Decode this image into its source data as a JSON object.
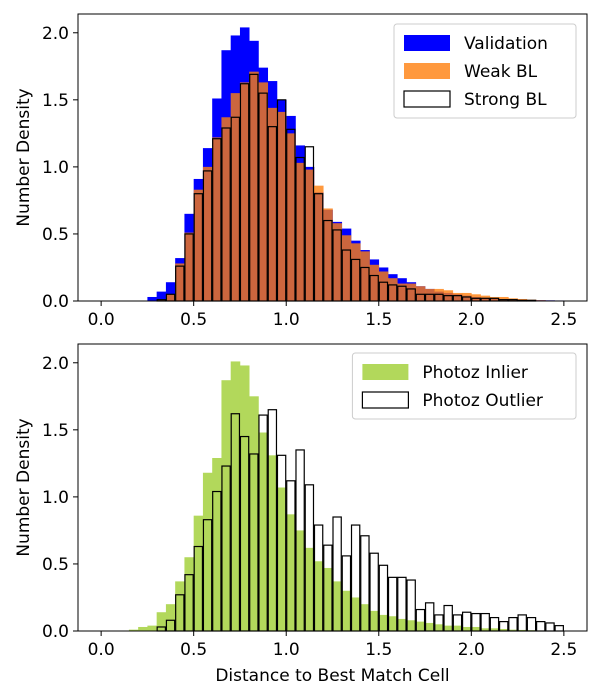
{
  "figure": {
    "xlabel": "Distance to Best Match Cell"
  },
  "chart_data": [
    {
      "type": "histogram",
      "panel": "top",
      "ylabel": "Number Density",
      "xlim": [
        -0.125,
        2.625
      ],
      "ylim": [
        0,
        2.14
      ],
      "xticks": [
        0,
        0.5,
        1,
        1.5,
        2,
        2.5
      ],
      "xtick_labels": [
        "0.0",
        "0.5",
        "1.0",
        "1.5",
        "2.0",
        "2.5"
      ],
      "yticks": [
        0,
        0.5,
        1,
        1.5,
        2
      ],
      "ytick_labels": [
        "0.0",
        "0.5",
        "1.0",
        "1.5",
        "2.0"
      ],
      "legend_position": "top-right",
      "bin_start": 0,
      "bin_width": 0.05,
      "series": [
        {
          "name": "Validation",
          "style": "filled",
          "color": "#0000ff",
          "alpha": 1.0,
          "values": [
            0,
            0,
            0,
            0,
            0,
            0.03,
            0.07,
            0.14,
            0.32,
            0.65,
            0.91,
            1.14,
            1.51,
            1.87,
            1.98,
            2.04,
            1.94,
            1.74,
            1.64,
            1.5,
            1.38,
            1.16,
            1.0,
            0.81,
            0.68,
            0.59,
            0.54,
            0.45,
            0.38,
            0.31,
            0.25,
            0.2,
            0.17,
            0.14,
            0.11,
            0.09,
            0.07,
            0.06,
            0.05,
            0.04,
            0.03,
            0.025,
            0.02,
            0.015,
            0.012,
            0.01,
            0.008,
            0.006,
            0.005,
            0.004
          ]
        },
        {
          "name": "Weak BL",
          "style": "filled",
          "color": "#ff7f0e",
          "alpha": 0.8,
          "values": [
            0,
            0,
            0,
            0,
            0,
            0,
            0.01,
            0.05,
            0.28,
            0.51,
            0.83,
            1.0,
            1.22,
            1.37,
            1.55,
            1.63,
            1.71,
            1.63,
            1.44,
            1.41,
            1.25,
            1.03,
            0.98,
            0.86,
            0.69,
            0.58,
            0.49,
            0.43,
            0.37,
            0.27,
            0.22,
            0.17,
            0.13,
            0.13,
            0.11,
            0.09,
            0.09,
            0.08,
            0.06,
            0.06,
            0.05,
            0.04,
            0.03,
            0.03,
            0.02,
            0.015,
            0.01,
            0.006,
            0.004,
            0.002
          ]
        },
        {
          "name": "Strong BL",
          "style": "step",
          "color": "#000000",
          "values": [
            0,
            0,
            0,
            0,
            0,
            0,
            0.01,
            0.05,
            0.26,
            0.5,
            0.8,
            0.97,
            1.21,
            1.29,
            1.37,
            1.62,
            1.69,
            1.55,
            1.3,
            1.5,
            1.28,
            1.07,
            1.15,
            0.8,
            0.6,
            0.53,
            0.38,
            0.31,
            0.25,
            0.19,
            0.14,
            0.12,
            0.11,
            0.09,
            0.05,
            0.05,
            0.05,
            0.04,
            0.04,
            0.03,
            0.02,
            0.02,
            0.02,
            0.01,
            0.01,
            0.005,
            0.005,
            0,
            0,
            0
          ]
        }
      ]
    },
    {
      "type": "histogram",
      "panel": "bottom",
      "ylabel": "Number Density",
      "xlabel": "Distance to Best Match Cell",
      "xlim": [
        -0.125,
        2.625
      ],
      "ylim": [
        0,
        2.14
      ],
      "xticks": [
        0,
        0.5,
        1,
        1.5,
        2,
        2.5
      ],
      "xtick_labels": [
        "0.0",
        "0.5",
        "1.0",
        "1.5",
        "2.0",
        "2.5"
      ],
      "yticks": [
        0,
        0.5,
        1,
        1.5,
        2
      ],
      "ytick_labels": [
        "0.0",
        "0.5",
        "1.0",
        "1.5",
        "2.0"
      ],
      "legend_position": "top-right",
      "bin_start": 0,
      "bin_width": 0.05,
      "series": [
        {
          "name": "Photoz Inlier",
          "style": "filled",
          "color": "#b2d85b",
          "alpha": 1.0,
          "values": [
            0,
            0,
            0,
            0.01,
            0.03,
            0.04,
            0.14,
            0.2,
            0.37,
            0.55,
            0.86,
            1.18,
            1.29,
            1.87,
            2.01,
            1.98,
            1.75,
            1.48,
            1.31,
            1.07,
            0.87,
            0.75,
            0.62,
            0.52,
            0.47,
            0.37,
            0.3,
            0.25,
            0.2,
            0.15,
            0.12,
            0.11,
            0.09,
            0.08,
            0.07,
            0.06,
            0.05,
            0.04,
            0.04,
            0.03,
            0.03,
            0.02,
            0.02,
            0.015,
            0.01,
            0.008,
            0.006,
            0.004,
            0.003,
            0.002
          ]
        },
        {
          "name": "Photoz Outlier",
          "style": "step",
          "color": "#000000",
          "values": [
            0,
            0,
            0,
            0,
            0,
            0,
            0.03,
            0.08,
            0.27,
            0.42,
            0.63,
            0.83,
            1.04,
            1.23,
            1.62,
            1.45,
            1.32,
            1.61,
            1.65,
            1.31,
            1.12,
            1.35,
            1.09,
            0.79,
            0.64,
            0.85,
            0.56,
            0.79,
            0.71,
            0.58,
            0.49,
            0.4,
            0.4,
            0.38,
            0.16,
            0.21,
            0.12,
            0.19,
            0.12,
            0.14,
            0.13,
            0.13,
            0.1,
            0.07,
            0.1,
            0.12,
            0.1,
            0.07,
            0.06,
            0.04
          ]
        }
      ]
    }
  ]
}
